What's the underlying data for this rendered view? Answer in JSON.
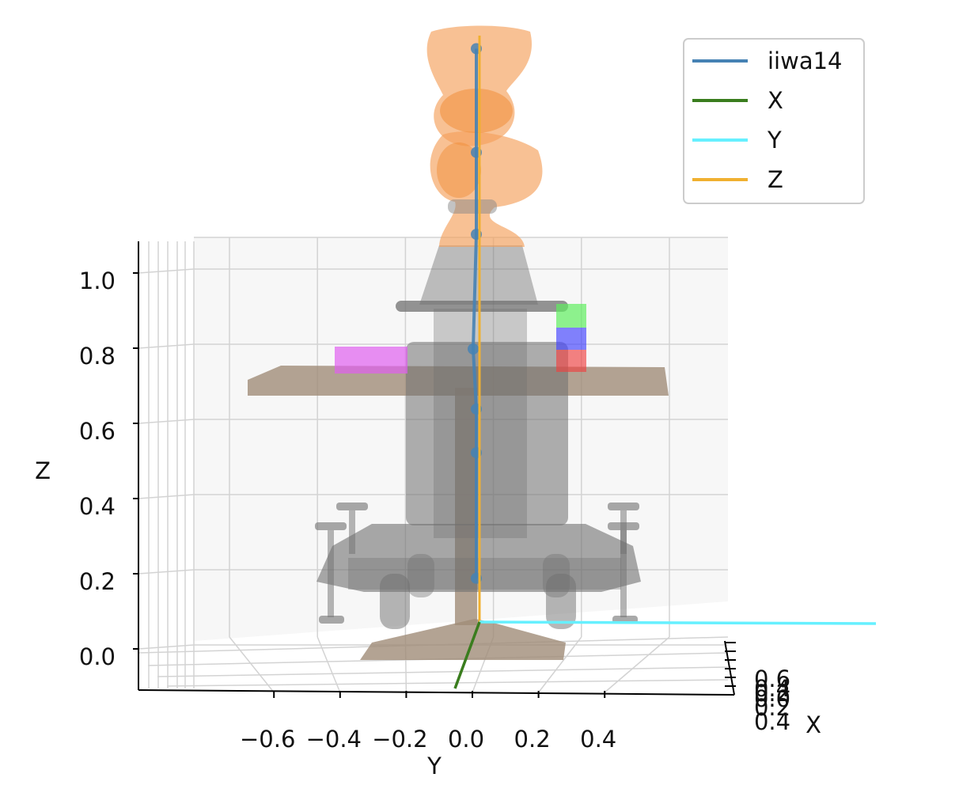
{
  "chart_data": {
    "type": "3d-scene",
    "xlabel": "X",
    "ylabel": "Y",
    "zlabel": "Z",
    "y_ticks": [
      -0.6,
      -0.4,
      -0.2,
      0.0,
      0.2,
      0.4
    ],
    "y_tick_labels": [
      "−0.6",
      "−0.4",
      "−0.2",
      "0.0",
      "0.2",
      "0.4"
    ],
    "z_ticks": [
      0.0,
      0.2,
      0.4,
      0.6,
      0.8,
      1.0
    ],
    "z_tick_labels": [
      "0.0",
      "0.2",
      "0.4",
      "0.6",
      "0.8",
      "1.0"
    ],
    "x_tick_labels": [
      "0.6",
      "0.4",
      "0.2",
      "0.0",
      "0.2",
      "0.4"
    ],
    "legend_placement": "top-right",
    "legend": [
      {
        "label": "iiwa14",
        "color": "#4682b4"
      },
      {
        "label": "X",
        "color": "#3a7d1e"
      },
      {
        "label": "Y",
        "color": "#66f0ff"
      },
      {
        "label": "Z",
        "color": "#f0b030"
      }
    ],
    "robot_joints_z": [
      0.08,
      0.31,
      0.39,
      0.5,
      0.71,
      0.86,
      1.05
    ],
    "colors": {
      "link_envelope": "#f5a05a",
      "mobile_base": "#707070",
      "table": "#a08c78",
      "magenta_box": "#e060f0",
      "green_box": "#60ee60",
      "blue_box": "#4040ff",
      "red_box": "#f04040"
    }
  }
}
